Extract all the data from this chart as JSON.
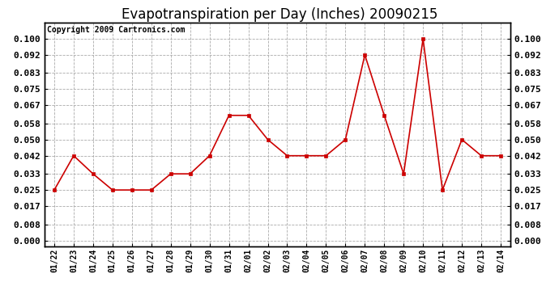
{
  "title": "Evapotranspiration per Day (Inches) 20090215",
  "copyright": "Copyright 2009 Cartronics.com",
  "dates": [
    "01/22",
    "01/23",
    "01/24",
    "01/25",
    "01/26",
    "01/27",
    "01/28",
    "01/29",
    "01/30",
    "01/31",
    "02/01",
    "02/02",
    "02/03",
    "02/04",
    "02/05",
    "02/06",
    "02/07",
    "02/08",
    "02/09",
    "02/10",
    "02/11",
    "02/12",
    "02/13",
    "02/14"
  ],
  "values": [
    0.025,
    0.042,
    0.033,
    0.025,
    0.025,
    0.025,
    0.033,
    0.033,
    0.042,
    0.062,
    0.062,
    0.05,
    0.042,
    0.042,
    0.042,
    0.05,
    0.092,
    0.062,
    0.033,
    0.1,
    0.025,
    0.05,
    0.042,
    0.042
  ],
  "line_color": "#cc0000",
  "marker_color": "#cc0000",
  "bg_color": "#ffffff",
  "grid_color": "#aaaaaa",
  "yticks": [
    0.0,
    0.008,
    0.017,
    0.025,
    0.033,
    0.042,
    0.05,
    0.058,
    0.067,
    0.075,
    0.083,
    0.092,
    0.1
  ],
  "ylim": [
    -0.003,
    0.108
  ],
  "title_fontsize": 12,
  "copyright_fontsize": 7,
  "tick_fontsize": 8,
  "xtick_fontsize": 7
}
